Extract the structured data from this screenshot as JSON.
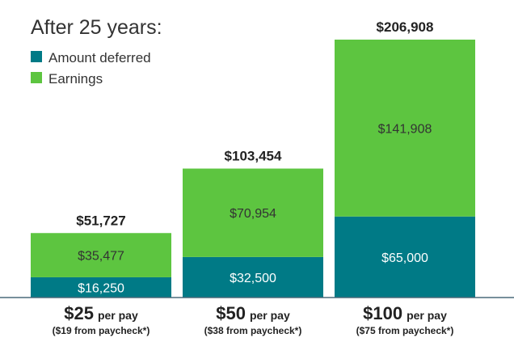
{
  "chart_data": {
    "type": "bar",
    "stacked": true,
    "title": "After 25 years:",
    "legend": [
      {
        "name": "Amount deferred",
        "color": "#007a86"
      },
      {
        "name": "Earnings",
        "color": "#5dc540"
      }
    ],
    "categories": [
      "$25",
      "$50",
      "$100"
    ],
    "category_suffix": "per pay",
    "category_notes": [
      "($19 from paycheck*)",
      "($38 from paycheck*)",
      "($75 from paycheck*)"
    ],
    "series": [
      {
        "name": "Amount deferred",
        "values": [
          16250,
          32500,
          65000
        ],
        "labels": [
          "$16,250",
          "$32,500",
          "$65,000"
        ]
      },
      {
        "name": "Earnings",
        "values": [
          35477,
          70954,
          141908
        ],
        "labels": [
          "$35,477",
          "$70,954",
          "$141,908"
        ]
      }
    ],
    "totals": [
      51727,
      103454,
      206908
    ],
    "total_labels": [
      "$51,727",
      "$103,454",
      "$206,908"
    ],
    "ylim": [
      0,
      206908
    ],
    "grid": false,
    "legend_position": "top-left"
  }
}
